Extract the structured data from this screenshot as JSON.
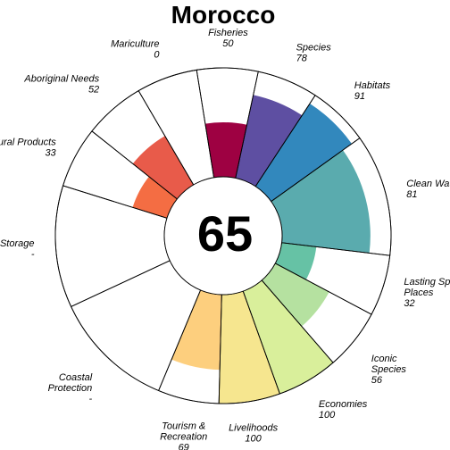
{
  "chart_data": {
    "type": "flower",
    "title": "Morocco",
    "score": "65",
    "max_value": 100,
    "goals": [
      {
        "name": "Carbon Storage",
        "value": null,
        "display": "-",
        "weight": 1.0,
        "color": "#f0f0f0"
      },
      {
        "name": "Natural Products",
        "value": 33,
        "display": "33",
        "weight": 0.5,
        "color": "#f46d43"
      },
      {
        "name": "Aboriginal Needs",
        "value": 52,
        "display": "52",
        "weight": 0.5,
        "color": "#e85b4a"
      },
      {
        "name": "Mariculture",
        "value": 0,
        "display": "0",
        "weight": 0.5,
        "color": "#d53e4f"
      },
      {
        "name": "Fisheries",
        "value": 50,
        "display": "50",
        "weight": 0.5,
        "color": "#9e0142"
      },
      {
        "name": "Species",
        "value": 78,
        "display": "78",
        "weight": 0.5,
        "color": "#5e4fa2"
      },
      {
        "name": "Habitats",
        "value": 91,
        "display": "91",
        "weight": 0.5,
        "color": "#3288bd"
      },
      {
        "name": "Clean Waters",
        "value": 81,
        "display": "81",
        "weight": 1.0,
        "color": "#5aabae"
      },
      {
        "name": "Lasting Special Places",
        "value": 32,
        "display": "32",
        "weight": 0.5,
        "color": "#66c2a5"
      },
      {
        "name": "Iconic Species",
        "value": 56,
        "display": "56",
        "weight": 0.5,
        "color": "#b5e1a0"
      },
      {
        "name": "Economies",
        "value": 100,
        "display": "100",
        "weight": 0.5,
        "color": "#d9ef9b"
      },
      {
        "name": "Livelihoods",
        "value": 100,
        "display": "100",
        "weight": 0.5,
        "color": "#f6e68f"
      },
      {
        "name": "Tourism & Recreation",
        "value": 69,
        "display": "69",
        "weight": 0.5,
        "color": "#fdcf7e"
      },
      {
        "name": "Coastal Protection",
        "value": null,
        "display": "-",
        "weight": 1.0,
        "color": "#fdae61"
      }
    ],
    "label_lines": [
      [
        "Carbon Storage",
        "-"
      ],
      [
        "Natural Products",
        "33"
      ],
      [
        "Aboriginal Needs",
        "52"
      ],
      [
        "Mariculture",
        "0"
      ],
      [
        "Fisheries",
        "50"
      ],
      [
        "Species",
        "78"
      ],
      [
        "Habitats",
        "91"
      ],
      [
        "Clean Waters",
        "81"
      ],
      [
        "Lasting Special",
        "Places",
        "32"
      ],
      [
        "Iconic",
        "Species",
        "56"
      ],
      [
        "Economies",
        "100"
      ],
      [
        "Livelihoods",
        "100"
      ],
      [
        "Tourism &",
        "Recreation",
        "69"
      ],
      [
        "Coastal",
        "Protection",
        "-"
      ]
    ]
  }
}
